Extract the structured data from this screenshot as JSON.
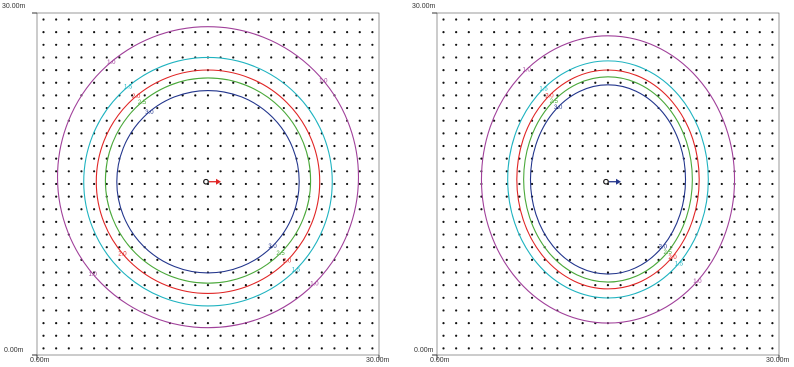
{
  "panels": [
    {
      "y_top_label": "30.00m",
      "y_bottom_label": "0.00m",
      "x_left_label": "0.00m",
      "x_right_label": "30.00m",
      "contours": [
        {
          "value": "1.0",
          "color": "#a0409a",
          "rx": 13.2,
          "ry": 13.2,
          "cy": 15.6,
          "labels": [
            "1.0",
            "1.0",
            "1.0",
            "1.0"
          ]
        },
        {
          "value": "1.5",
          "color": "#1fb3c0",
          "rx": 10.9,
          "ry": 10.9,
          "cy": 15.2,
          "labels": [
            "1.5",
            "1.5"
          ]
        },
        {
          "value": "2.0",
          "color": "#e02424",
          "rx": 9.8,
          "ry": 9.8,
          "cy": 15.2,
          "labels": [
            "2.0",
            "2.0",
            "2.0"
          ]
        },
        {
          "value": "2.5",
          "color": "#4aa83a",
          "rx": 9.0,
          "ry": 9.0,
          "cy": 15.3,
          "labels": [
            "2.5",
            "2.5"
          ]
        },
        {
          "value": "3.0",
          "color": "#22358c",
          "rx": 8.0,
          "ry": 8.0,
          "cy": 15.2,
          "labels": [
            "3.0",
            "3.0"
          ]
        }
      ],
      "source_arrow_color": "#e02424"
    },
    {
      "y_top_label": "30.00m",
      "y_bottom_label": "0.00m",
      "x_left_label": "0.00m",
      "x_right_label": "30.00m",
      "contours": [
        {
          "value": "1.0",
          "color": "#a0409a",
          "rx": 11.1,
          "ry": 12.6,
          "cy": 15.4,
          "labels": [
            "1.0",
            "1.0"
          ]
        },
        {
          "value": "1.5",
          "color": "#1fb3c0",
          "rx": 8.8,
          "ry": 10.4,
          "cy": 15.4,
          "labels": [
            "1.5",
            "1.5"
          ]
        },
        {
          "value": "2.0",
          "color": "#e02424",
          "rx": 8.0,
          "ry": 9.6,
          "cy": 15.4,
          "labels": [
            "2.0",
            "2.0"
          ]
        },
        {
          "value": "2.5",
          "color": "#4aa83a",
          "rx": 7.4,
          "ry": 9.0,
          "cy": 15.4,
          "labels": [
            "2.5",
            "2.5"
          ]
        },
        {
          "value": "3.0",
          "color": "#22358c",
          "rx": 6.8,
          "ry": 8.3,
          "cy": 15.4,
          "labels": [
            "3.0",
            "3.0"
          ]
        }
      ],
      "source_arrow_color": "#22358c"
    }
  ]
}
